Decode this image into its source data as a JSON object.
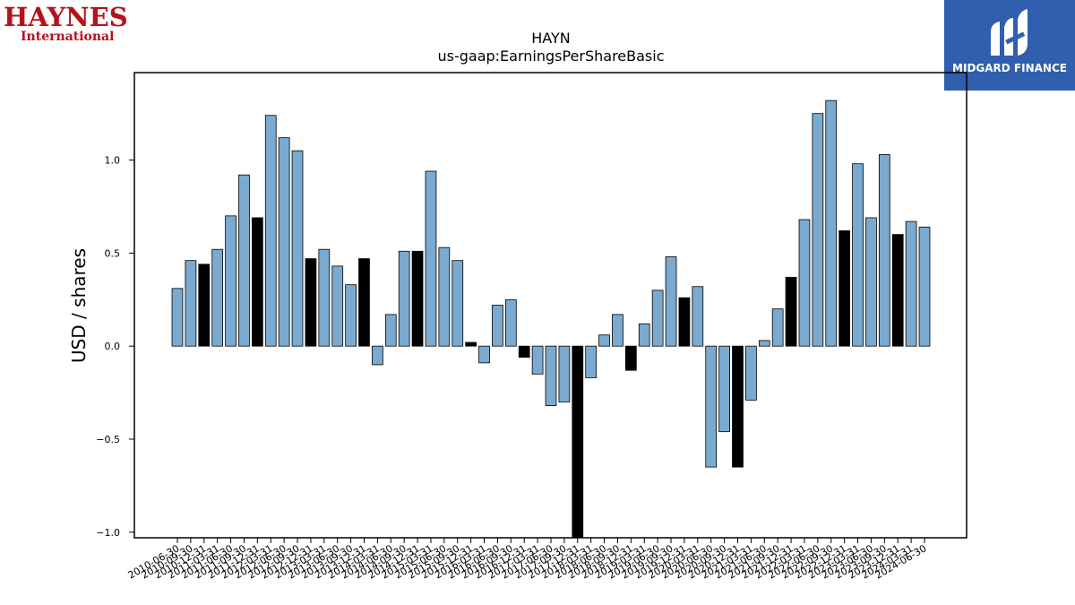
{
  "logos": {
    "left": {
      "line1": "HAYNES",
      "line2": "International"
    },
    "right": {
      "name": "MIDGARD FINANCE",
      "icon": "midgard-m-icon"
    }
  },
  "colors": {
    "bar": "#7aaad0",
    "bar_highlight": "#000000",
    "axis": "#000000"
  },
  "chart_data": {
    "type": "bar",
    "title": "HAYN",
    "subtitle": "us-gaap:EarningsPerShareBasic",
    "xlabel": "",
    "ylabel": "USD / shares",
    "ylim": [
      -1.03,
      1.47
    ],
    "yticks": [
      "−1.0",
      "−0.5",
      "0.0",
      "0.5",
      "1.0"
    ],
    "yticks_values": [
      -1.0,
      -0.5,
      0.0,
      0.5,
      1.0
    ],
    "grid": false,
    "categories": [
      "2010-06-30",
      "2010-09-30",
      "2010-12-31",
      "2011-03-31",
      "2011-06-30",
      "2011-09-30",
      "2011-12-31",
      "2012-03-31",
      "2012-06-30",
      "2012-09-30",
      "2012-12-31",
      "2013-03-31",
      "2013-06-30",
      "2013-09-30",
      "2013-12-31",
      "2014-03-31",
      "2014-06-30",
      "2014-09-30",
      "2014-12-31",
      "2015-03-31",
      "2015-06-30",
      "2015-09-30",
      "2015-12-31",
      "2016-03-31",
      "2016-06-30",
      "2016-09-30",
      "2016-12-31",
      "2017-03-31",
      "2017-06-30",
      "2017-09-30",
      "2017-12-31",
      "2018-03-31",
      "2018-06-30",
      "2018-09-30",
      "2018-12-31",
      "2019-03-31",
      "2019-06-30",
      "2019-09-30",
      "2019-12-31",
      "2020-03-31",
      "2020-06-30",
      "2020-09-30",
      "2020-12-31",
      "2021-03-31",
      "2021-06-30",
      "2021-09-30",
      "2021-12-31",
      "2022-03-31",
      "2022-06-30",
      "2022-09-30",
      "2022-12-31",
      "2023-03-31",
      "2023-06-30",
      "2023-09-30",
      "2023-12-31",
      "2024-03-31",
      "2024-06-30"
    ],
    "values": [
      0.31,
      0.46,
      0.44,
      0.52,
      0.7,
      0.92,
      0.69,
      1.24,
      1.12,
      1.05,
      0.47,
      0.52,
      0.43,
      0.33,
      0.47,
      -0.1,
      0.17,
      0.51,
      0.51,
      0.94,
      0.53,
      0.46,
      0.02,
      -0.09,
      0.22,
      0.25,
      -0.06,
      -0.15,
      -0.32,
      -0.3,
      -1.03,
      -0.17,
      0.06,
      0.17,
      -0.13,
      0.12,
      0.3,
      0.48,
      0.26,
      0.32,
      -0.65,
      -0.46,
      -0.65,
      -0.29,
      0.03,
      0.2,
      0.37,
      0.68,
      1.25,
      1.32,
      0.62,
      0.98,
      0.69,
      1.03,
      0.6,
      0.67,
      0.64
    ],
    "highlight": [
      false,
      false,
      true,
      false,
      false,
      false,
      true,
      false,
      false,
      false,
      true,
      false,
      false,
      false,
      true,
      false,
      false,
      false,
      true,
      false,
      false,
      false,
      true,
      false,
      false,
      false,
      true,
      false,
      false,
      false,
      true,
      false,
      false,
      false,
      true,
      false,
      false,
      false,
      true,
      false,
      false,
      false,
      true,
      false,
      false,
      false,
      true,
      false,
      false,
      false,
      true,
      false,
      false,
      false,
      true,
      false,
      false
    ]
  }
}
